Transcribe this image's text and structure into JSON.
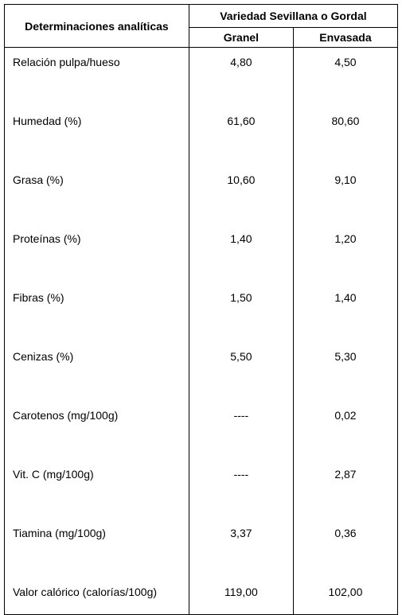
{
  "table": {
    "header_main": "Determinaciones analíticas",
    "header_variety": "Variedad Sevillana o Gordal",
    "header_granel": "Granel",
    "header_envasada": "Envasada",
    "rows": [
      {
        "label": "Relación pulpa/hueso",
        "granel": "4,80",
        "envasada": "4,50"
      },
      {
        "label": "Humedad (%)",
        "granel": "61,60",
        "envasada": "80,60"
      },
      {
        "label": "Grasa (%)",
        "granel": "10,60",
        "envasada": "9,10"
      },
      {
        "label": "Proteínas (%)",
        "granel": "1,40",
        "envasada": "1,20"
      },
      {
        "label": "Fibras (%)",
        "granel": "1,50",
        "envasada": "1,40"
      },
      {
        "label": "Cenizas (%)",
        "granel": "5,50",
        "envasada": "5,30"
      },
      {
        "label": "Carotenos (mg/100g)",
        "granel": "----",
        "envasada": "0,02"
      },
      {
        "label": "Vit. C (mg/100g)",
        "granel": "----",
        "envasada": "2,87"
      },
      {
        "label": "Tiamina (mg/100g)",
        "granel": "3,37",
        "envasada": "0,36"
      },
      {
        "label": "Valor calórico (calorías/100g)",
        "granel": "119,00",
        "envasada": "102,00"
      }
    ]
  },
  "styles": {
    "font_family": "Arial",
    "font_size_header": 14,
    "font_size_body": 14,
    "border_color": "#000000",
    "background_color": "#ffffff",
    "text_color": "#000000"
  }
}
